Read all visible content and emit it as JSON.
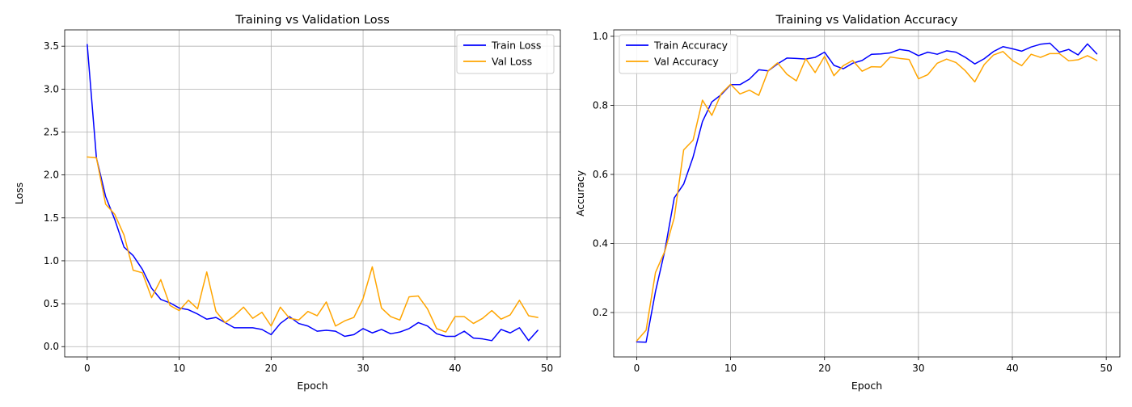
{
  "chart_data": [
    {
      "type": "line",
      "title": "Training vs Validation Loss",
      "xlabel": "Epoch",
      "ylabel": "Loss",
      "xlim": [
        -2.45,
        51.45
      ],
      "ylim": [
        -0.12,
        3.69
      ],
      "xticks": [
        0,
        10,
        20,
        30,
        40,
        50
      ],
      "xtick_labels": [
        "0",
        "10",
        "20",
        "30",
        "40",
        "50"
      ],
      "yticks": [
        0.0,
        0.5,
        1.0,
        1.5,
        2.0,
        2.5,
        3.0,
        3.5
      ],
      "ytick_labels": [
        "0.0",
        "0.5",
        "1.0",
        "1.5",
        "2.0",
        "2.5",
        "3.0",
        "3.5"
      ],
      "grid": true,
      "legend_position": "top-right",
      "series": [
        {
          "name": "Train Loss",
          "color": "#0000ff",
          "values": [
            3.52,
            2.2,
            1.75,
            1.48,
            1.16,
            1.06,
            0.9,
            0.68,
            0.55,
            0.51,
            0.45,
            0.43,
            0.38,
            0.32,
            0.34,
            0.28,
            0.22,
            0.22,
            0.22,
            0.2,
            0.14,
            0.27,
            0.35,
            0.27,
            0.24,
            0.18,
            0.19,
            0.18,
            0.12,
            0.14,
            0.21,
            0.16,
            0.2,
            0.15,
            0.17,
            0.21,
            0.28,
            0.24,
            0.15,
            0.12,
            0.12,
            0.18,
            0.1,
            0.09,
            0.07,
            0.2,
            0.16,
            0.22,
            0.07,
            0.19
          ]
        },
        {
          "name": "Val Loss",
          "color": "#ffa500",
          "values": [
            2.21,
            2.2,
            1.66,
            1.54,
            1.3,
            0.89,
            0.86,
            0.57,
            0.78,
            0.48,
            0.42,
            0.54,
            0.44,
            0.87,
            0.41,
            0.28,
            0.36,
            0.46,
            0.33,
            0.4,
            0.24,
            0.46,
            0.33,
            0.31,
            0.41,
            0.36,
            0.52,
            0.24,
            0.3,
            0.34,
            0.56,
            0.93,
            0.45,
            0.35,
            0.31,
            0.58,
            0.59,
            0.44,
            0.21,
            0.17,
            0.35,
            0.35,
            0.27,
            0.33,
            0.42,
            0.32,
            0.37,
            0.54,
            0.36,
            0.34
          ]
        }
      ]
    },
    {
      "type": "line",
      "title": "Training vs Validation Accuracy",
      "xlabel": "Epoch",
      "ylabel": "Accuracy",
      "xlim": [
        -2.45,
        51.45
      ],
      "ylim": [
        0.0714,
        1.0186
      ],
      "xticks": [
        0,
        10,
        20,
        30,
        40,
        50
      ],
      "xtick_labels": [
        "0",
        "10",
        "20",
        "30",
        "40",
        "50"
      ],
      "yticks": [
        0.2,
        0.4,
        0.6,
        0.8,
        1.0
      ],
      "ytick_labels": [
        "0.2",
        "0.4",
        "0.6",
        "0.8",
        "1.0"
      ],
      "grid": true,
      "legend_position": "top-left",
      "series": [
        {
          "name": "Train Accuracy",
          "color": "#0000ff",
          "values": [
            0.115,
            0.114,
            0.261,
            0.38,
            0.532,
            0.572,
            0.65,
            0.753,
            0.81,
            0.831,
            0.86,
            0.86,
            0.876,
            0.903,
            0.9,
            0.92,
            0.937,
            0.936,
            0.934,
            0.939,
            0.954,
            0.916,
            0.906,
            0.922,
            0.93,
            0.948,
            0.949,
            0.952,
            0.962,
            0.958,
            0.944,
            0.954,
            0.948,
            0.958,
            0.954,
            0.939,
            0.92,
            0.935,
            0.956,
            0.97,
            0.964,
            0.957,
            0.969,
            0.977,
            0.98,
            0.954,
            0.962,
            0.946,
            0.978,
            0.949
          ]
        },
        {
          "name": "Val Accuracy",
          "color": "#ffa500",
          "values": [
            0.118,
            0.149,
            0.316,
            0.378,
            0.475,
            0.671,
            0.699,
            0.815,
            0.771,
            0.834,
            0.861,
            0.833,
            0.844,
            0.829,
            0.9,
            0.923,
            0.89,
            0.871,
            0.935,
            0.895,
            0.942,
            0.886,
            0.915,
            0.93,
            0.899,
            0.912,
            0.911,
            0.94,
            0.936,
            0.933,
            0.877,
            0.889,
            0.922,
            0.934,
            0.924,
            0.9,
            0.868,
            0.918,
            0.946,
            0.956,
            0.93,
            0.915,
            0.948,
            0.939,
            0.95,
            0.95,
            0.929,
            0.932,
            0.944,
            0.93
          ]
        }
      ]
    }
  ]
}
